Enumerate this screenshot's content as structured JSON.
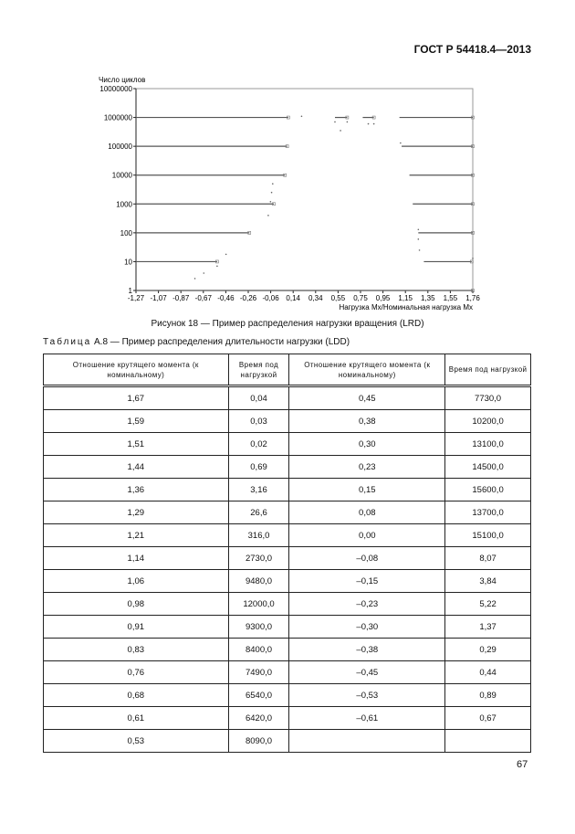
{
  "header": {
    "standard": "ГОСТ Р 54418.4—2013"
  },
  "chart_data": {
    "type": "line",
    "ylabel": "Число циклов",
    "xlabel": "Нагрузка Mx/Номинальная нагрузка Mx",
    "yscale": "log",
    "ylim": [
      1,
      10000000
    ],
    "xlim": [
      -1.27,
      1.76
    ],
    "y_ticks": [
      "1",
      "10",
      "100",
      "1000",
      "10000",
      "100000",
      "1000000",
      "10000000"
    ],
    "x_ticks": [
      "-1,27",
      "-1,07",
      "-0,87",
      "-0,67",
      "-0,46",
      "-0,26",
      "-0,06",
      "0,14",
      "0,34",
      "0,55",
      "0,75",
      "0,95",
      "1,15",
      "1,35",
      "1,55",
      "1,76"
    ],
    "series": [
      {
        "segments": [
          {
            "y": 1000000,
            "x": [
              -1.27,
              0.1
            ]
          },
          {
            "y": 100000,
            "x": [
              -1.27,
              0.09
            ]
          },
          {
            "y": 10000,
            "x": [
              -1.27,
              0.07
            ]
          },
          {
            "y": 1000,
            "x": [
              -1.27,
              -0.03
            ]
          },
          {
            "y": 100,
            "x": [
              -1.27,
              -0.25
            ]
          },
          {
            "y": 10,
            "x": [
              -1.27,
              -0.54
            ]
          },
          {
            "y": 1000000,
            "x": [
              0.52,
              0.63
            ]
          },
          {
            "y": 1000000,
            "x": [
              0.77,
              0.87
            ]
          },
          {
            "y": 1000000,
            "x": [
              1.1,
              1.76
            ]
          },
          {
            "y": 100000,
            "x": [
              1.12,
              1.76
            ]
          },
          {
            "y": 10000,
            "x": [
              1.19,
              1.76
            ]
          },
          {
            "y": 1000,
            "x": [
              1.22,
              1.76
            ]
          },
          {
            "y": 100,
            "x": [
              1.27,
              1.76
            ]
          },
          {
            "y": 10,
            "x": [
              1.32,
              1.75
            ]
          },
          {
            "y": 1,
            "x": [
              -1.27,
              1.76
            ]
          }
        ]
      },
      {
        "points": [
          [
            0.22,
            1100000
          ],
          [
            0.57,
            350000
          ],
          [
            0.52,
            700000
          ],
          [
            0.63,
            700000
          ],
          [
            0.82,
            600000
          ],
          [
            0.87,
            600000
          ],
          [
            1.11,
            130000
          ],
          [
            -0.04,
            5000
          ],
          [
            -0.05,
            2500
          ],
          [
            -0.06,
            1200
          ],
          [
            -0.08,
            400
          ],
          [
            -0.46,
            18
          ],
          [
            -0.66,
            4
          ],
          [
            -0.74,
            2.6
          ],
          [
            -0.54,
            7
          ],
          [
            1.27,
            60
          ],
          [
            1.28,
            25
          ],
          [
            1.27,
            130
          ],
          [
            1.76,
            13
          ]
        ]
      }
    ]
  },
  "figure_caption": "Рисунок 18 — Пример распределения нагрузки вращения (LRD)",
  "table": {
    "caption_label": "Таблица",
    "caption_rest": " А.8 — Пример распределения длительности нагрузки (LDD)",
    "headers": [
      "Отношение крутящего момента (к номинальному)",
      "Время под нагрузкой",
      "Отношение крутящего момента (к номинальному)",
      "Время под нагрузкой"
    ],
    "rows": [
      [
        "1,67",
        "0,04",
        "0,45",
        "7730,0"
      ],
      [
        "1,59",
        "0,03",
        "0,38",
        "10200,0"
      ],
      [
        "1,51",
        "0,02",
        "0,30",
        "13100,0"
      ],
      [
        "1,44",
        "0,69",
        "0,23",
        "14500,0"
      ],
      [
        "1,36",
        "3,16",
        "0,15",
        "15600,0"
      ],
      [
        "1,29",
        "26,6",
        "0,08",
        "13700,0"
      ],
      [
        "1,21",
        "316,0",
        "0,00",
        "15100,0"
      ],
      [
        "1,14",
        "2730,0",
        "–0,08",
        "8,07"
      ],
      [
        "1,06",
        "9480,0",
        "–0,15",
        "3,84"
      ],
      [
        "0,98",
        "12000,0",
        "–0,23",
        "5,22"
      ],
      [
        "0,91",
        "9300,0",
        "–0,30",
        "1,37"
      ],
      [
        "0,83",
        "8400,0",
        "–0,38",
        "0,29"
      ],
      [
        "0,76",
        "7490,0",
        "–0,45",
        "0,44"
      ],
      [
        "0,68",
        "6540,0",
        "–0,53",
        "0,89"
      ],
      [
        "0,61",
        "6420,0",
        "–0,61",
        "0,67"
      ],
      [
        "0,53",
        "8090,0",
        "",
        ""
      ]
    ]
  },
  "page_number": "67"
}
